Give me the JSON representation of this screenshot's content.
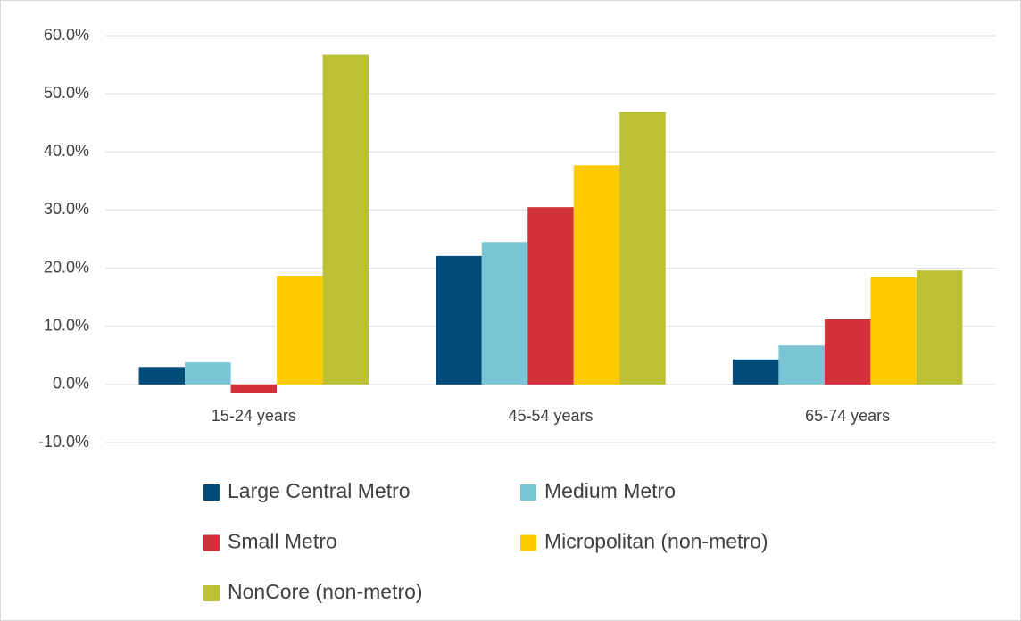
{
  "chart_data": {
    "type": "bar",
    "categories": [
      "15-24 years",
      "45-54 years",
      "65-74 years"
    ],
    "series": [
      {
        "name": "Large Central Metro",
        "color": "#004c79",
        "values": [
          3.0,
          22.1,
          4.3
        ]
      },
      {
        "name": "Medium Metro",
        "color": "#79c5d6",
        "values": [
          3.8,
          24.5,
          6.7
        ]
      },
      {
        "name": "Small Metro",
        "color": "#d2303a",
        "values": [
          -1.4,
          30.5,
          11.2
        ]
      },
      {
        "name": "Micropolitan (non-metro)",
        "color": "#fecb00",
        "values": [
          18.7,
          37.7,
          18.4
        ]
      },
      {
        "name": "NonCore (non-metro)",
        "color": "#bcc034",
        "values": [
          56.7,
          46.9,
          19.6
        ]
      }
    ],
    "ylim": [
      -10,
      60
    ],
    "yticks": [
      {
        "value": -10,
        "label": "-10.0%"
      },
      {
        "value": 0,
        "label": "0.0%"
      },
      {
        "value": 10,
        "label": "10.0%"
      },
      {
        "value": 20,
        "label": "20.0%"
      },
      {
        "value": 30,
        "label": "30.0%"
      },
      {
        "value": 40,
        "label": "40.0%"
      },
      {
        "value": 50,
        "label": "50.0%"
      },
      {
        "value": 60,
        "label": "60.0%"
      }
    ],
    "grid": true,
    "legend": "bottom"
  }
}
